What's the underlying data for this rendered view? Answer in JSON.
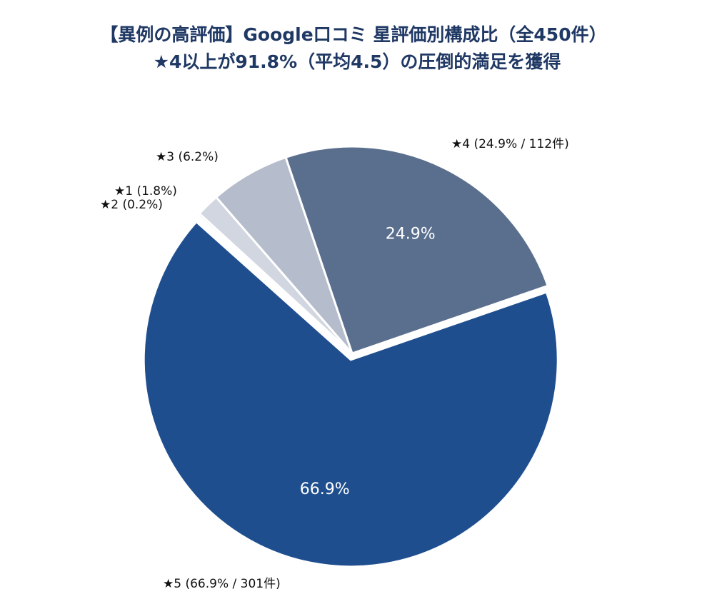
{
  "chart_data": {
    "type": "pie",
    "title": "【異例の高評価】Google口コミ 星評価別構成比（全450件）",
    "subtitle": "★4以上が91.8%（平均4.5）の圧倒的満足を獲得",
    "categories": [
      "★4 (24.9% / 112件)",
      "★5 (66.9% / 301件)",
      "★2 (0.2%)",
      "★1 (1.8%)",
      "★3 (6.2%)"
    ],
    "values": [
      24.9,
      66.9,
      0.2,
      1.8,
      6.2
    ],
    "value_labels": [
      "24.9%",
      "66.9%",
      null,
      null,
      null
    ],
    "colors": [
      "#5a6f8e",
      "#1f4e8f",
      "#e6e8ee",
      "#d2d6e0",
      "#b5bccb"
    ]
  }
}
